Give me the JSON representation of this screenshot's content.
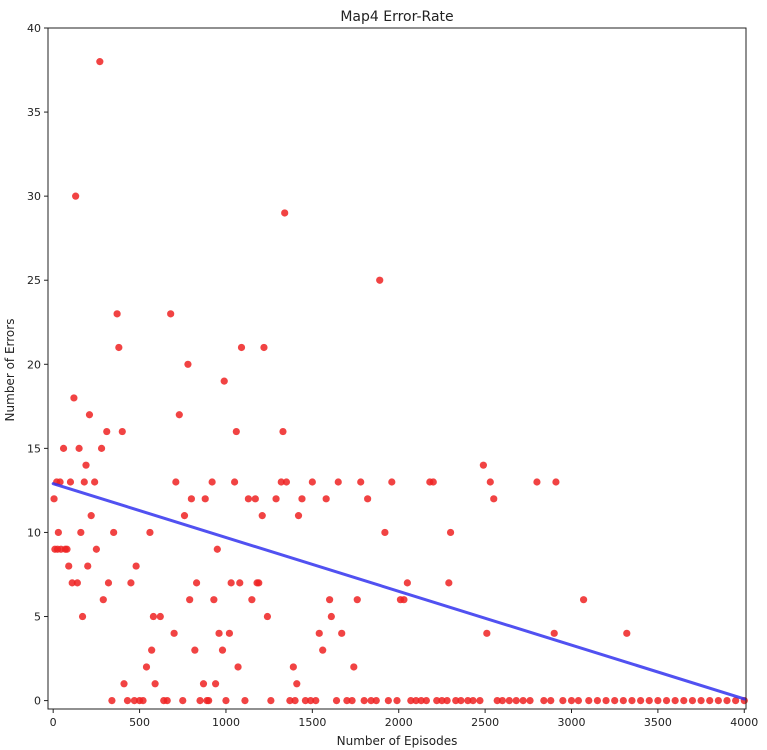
{
  "chart_data": {
    "type": "scatter",
    "title": "Map4 Error-Rate",
    "xlabel": "Number of Episodes",
    "ylabel": "Number of Errors",
    "xlim": [
      -30,
      4010
    ],
    "ylim": [
      -0.5,
      40
    ],
    "xticks": [
      0,
      500,
      1000,
      1500,
      2000,
      2500,
      3000,
      3500,
      4000
    ],
    "yticks": [
      0,
      5,
      10,
      15,
      20,
      25,
      30,
      35,
      40
    ],
    "grid": false,
    "legend": "none",
    "colors": {
      "points": "#ee2222",
      "trend": "#3333ee",
      "axes": "#222222"
    },
    "trend_line": {
      "x": [
        0,
        4000
      ],
      "y": [
        12.9,
        0.1
      ]
    },
    "points": [
      [
        5,
        12
      ],
      [
        10,
        9
      ],
      [
        20,
        13
      ],
      [
        25,
        9
      ],
      [
        30,
        10
      ],
      [
        40,
        13
      ],
      [
        45,
        9
      ],
      [
        60,
        15
      ],
      [
        70,
        9
      ],
      [
        80,
        9
      ],
      [
        90,
        8
      ],
      [
        100,
        13
      ],
      [
        110,
        7
      ],
      [
        120,
        18
      ],
      [
        130,
        30
      ],
      [
        140,
        7
      ],
      [
        150,
        15
      ],
      [
        160,
        10
      ],
      [
        170,
        5
      ],
      [
        180,
        13
      ],
      [
        190,
        14
      ],
      [
        200,
        8
      ],
      [
        210,
        17
      ],
      [
        220,
        11
      ],
      [
        240,
        13
      ],
      [
        250,
        9
      ],
      [
        270,
        38
      ],
      [
        280,
        15
      ],
      [
        290,
        6
      ],
      [
        310,
        16
      ],
      [
        320,
        7
      ],
      [
        340,
        0
      ],
      [
        350,
        10
      ],
      [
        370,
        23
      ],
      [
        380,
        21
      ],
      [
        400,
        16
      ],
      [
        410,
        1
      ],
      [
        430,
        0
      ],
      [
        450,
        7
      ],
      [
        470,
        0
      ],
      [
        480,
        8
      ],
      [
        500,
        0
      ],
      [
        520,
        0
      ],
      [
        540,
        2
      ],
      [
        560,
        10
      ],
      [
        570,
        3
      ],
      [
        580,
        5
      ],
      [
        590,
        1
      ],
      [
        620,
        5
      ],
      [
        640,
        0
      ],
      [
        660,
        0
      ],
      [
        680,
        23
      ],
      [
        700,
        4
      ],
      [
        710,
        13
      ],
      [
        730,
        17
      ],
      [
        750,
        0
      ],
      [
        760,
        11
      ],
      [
        780,
        20
      ],
      [
        790,
        6
      ],
      [
        800,
        12
      ],
      [
        820,
        3
      ],
      [
        830,
        7
      ],
      [
        850,
        0
      ],
      [
        870,
        1
      ],
      [
        880,
        12
      ],
      [
        890,
        0
      ],
      [
        900,
        0
      ],
      [
        920,
        13
      ],
      [
        930,
        6
      ],
      [
        940,
        1
      ],
      [
        950,
        9
      ],
      [
        960,
        4
      ],
      [
        980,
        3
      ],
      [
        990,
        19
      ],
      [
        1000,
        0
      ],
      [
        1020,
        4
      ],
      [
        1030,
        7
      ],
      [
        1050,
        13
      ],
      [
        1060,
        16
      ],
      [
        1070,
        2
      ],
      [
        1080,
        7
      ],
      [
        1090,
        21
      ],
      [
        1110,
        0
      ],
      [
        1130,
        12
      ],
      [
        1150,
        6
      ],
      [
        1170,
        12
      ],
      [
        1180,
        7
      ],
      [
        1190,
        7
      ],
      [
        1210,
        11
      ],
      [
        1220,
        21
      ],
      [
        1240,
        5
      ],
      [
        1260,
        0
      ],
      [
        1290,
        12
      ],
      [
        1320,
        13
      ],
      [
        1330,
        16
      ],
      [
        1340,
        29
      ],
      [
        1350,
        13
      ],
      [
        1370,
        0
      ],
      [
        1390,
        2
      ],
      [
        1400,
        0
      ],
      [
        1410,
        1
      ],
      [
        1420,
        11
      ],
      [
        1440,
        12
      ],
      [
        1460,
        0
      ],
      [
        1490,
        0
      ],
      [
        1500,
        13
      ],
      [
        1520,
        0
      ],
      [
        1540,
        4
      ],
      [
        1560,
        3
      ],
      [
        1580,
        12
      ],
      [
        1600,
        6
      ],
      [
        1610,
        5
      ],
      [
        1640,
        0
      ],
      [
        1650,
        13
      ],
      [
        1670,
        4
      ],
      [
        1700,
        0
      ],
      [
        1730,
        0
      ],
      [
        1740,
        2
      ],
      [
        1760,
        6
      ],
      [
        1780,
        13
      ],
      [
        1800,
        0
      ],
      [
        1820,
        12
      ],
      [
        1840,
        0
      ],
      [
        1870,
        0
      ],
      [
        1890,
        25
      ],
      [
        1920,
        10
      ],
      [
        1940,
        0
      ],
      [
        1960,
        13
      ],
      [
        1990,
        0
      ],
      [
        2010,
        6
      ],
      [
        2030,
        6
      ],
      [
        2050,
        7
      ],
      [
        2070,
        0
      ],
      [
        2100,
        0
      ],
      [
        2130,
        0
      ],
      [
        2160,
        0
      ],
      [
        2180,
        13
      ],
      [
        2200,
        13
      ],
      [
        2220,
        0
      ],
      [
        2250,
        0
      ],
      [
        2280,
        0
      ],
      [
        2290,
        7
      ],
      [
        2300,
        10
      ],
      [
        2330,
        0
      ],
      [
        2360,
        0
      ],
      [
        2400,
        0
      ],
      [
        2430,
        0
      ],
      [
        2470,
        0
      ],
      [
        2490,
        14
      ],
      [
        2510,
        4
      ],
      [
        2530,
        13
      ],
      [
        2550,
        12
      ],
      [
        2570,
        0
      ],
      [
        2600,
        0
      ],
      [
        2640,
        0
      ],
      [
        2680,
        0
      ],
      [
        2720,
        0
      ],
      [
        2760,
        0
      ],
      [
        2800,
        13
      ],
      [
        2840,
        0
      ],
      [
        2880,
        0
      ],
      [
        2900,
        4
      ],
      [
        2910,
        13
      ],
      [
        2950,
        0
      ],
      [
        3000,
        0
      ],
      [
        3040,
        0
      ],
      [
        3070,
        6
      ],
      [
        3100,
        0
      ],
      [
        3150,
        0
      ],
      [
        3200,
        0
      ],
      [
        3250,
        0
      ],
      [
        3300,
        0
      ],
      [
        3320,
        4
      ],
      [
        3350,
        0
      ],
      [
        3400,
        0
      ],
      [
        3450,
        0
      ],
      [
        3500,
        0
      ],
      [
        3550,
        0
      ],
      [
        3600,
        0
      ],
      [
        3650,
        0
      ],
      [
        3700,
        0
      ],
      [
        3750,
        0
      ],
      [
        3800,
        0
      ],
      [
        3850,
        0
      ],
      [
        3900,
        0
      ],
      [
        3950,
        0
      ],
      [
        4000,
        0
      ]
    ]
  }
}
